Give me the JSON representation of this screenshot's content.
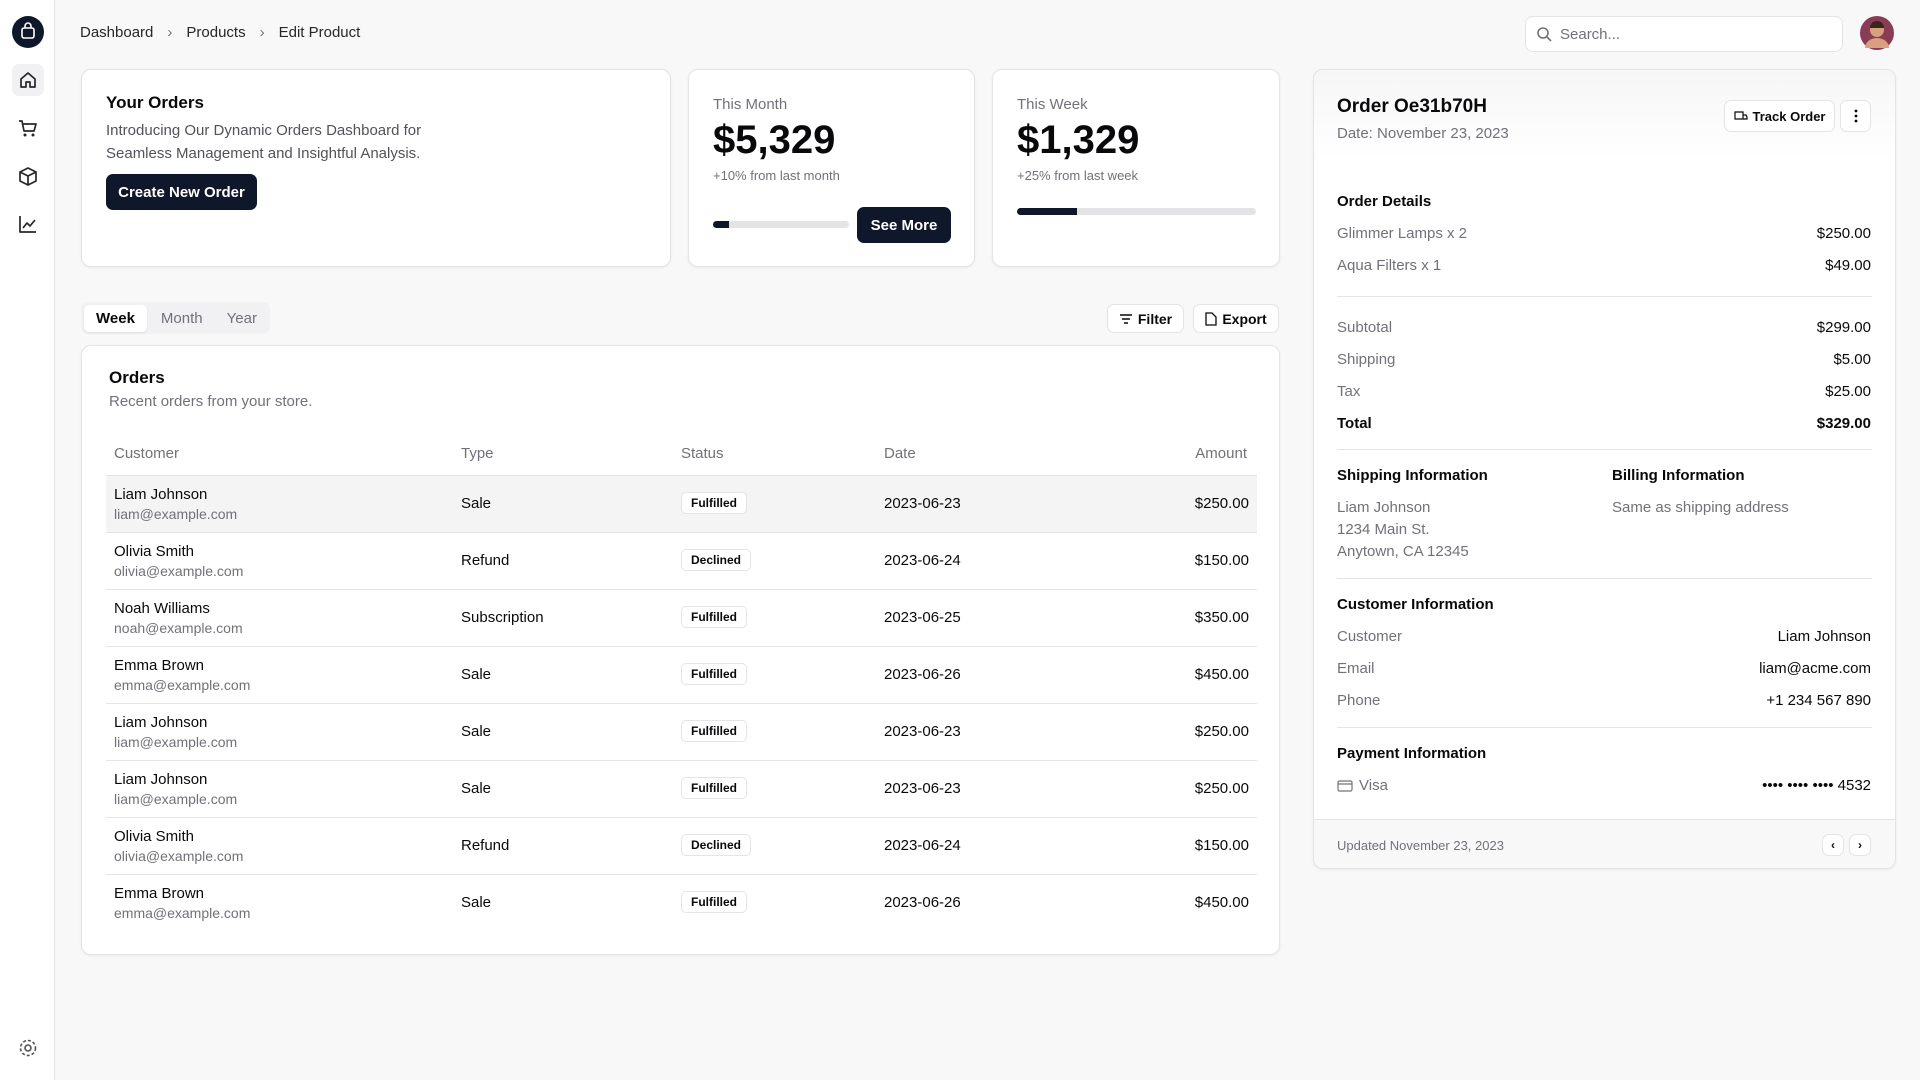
{
  "breadcrumb": [
    "Dashboard",
    "Products",
    "Edit Product"
  ],
  "search_placeholder": "Search...",
  "your_orders": {
    "title": "Your Orders",
    "description_lines": [
      "Introducing Our Dynamic Orders Dashboard for",
      "Seamless Management and Insightful Analysis."
    ],
    "button": "Create New Order"
  },
  "this_month": {
    "label": "This Month",
    "value": "$5,329",
    "change": "+10% from last month",
    "button": "See More",
    "progress": 12
  },
  "this_week": {
    "label": "This Week",
    "value": "$1,329",
    "change": "+25% from last week",
    "progress": 25
  },
  "tabs": [
    "Week",
    "Month",
    "Year"
  ],
  "filter": "Filter",
  "export": "Export",
  "orders": {
    "title": "Orders",
    "description": "Recent orders from your store.",
    "columns": [
      "Customer",
      "Type",
      "Status",
      "Date",
      "Amount"
    ],
    "rows": [
      {
        "name": "Liam Johnson",
        "email": "liam@example.com",
        "type": "Sale",
        "status": "Fulfilled",
        "date": "2023-06-23",
        "amount": "$250.00"
      },
      {
        "name": "Olivia Smith",
        "email": "olivia@example.com",
        "type": "Refund",
        "status": "Declined",
        "date": "2023-06-24",
        "amount": "$150.00"
      },
      {
        "name": "Noah Williams",
        "email": "noah@example.com",
        "type": "Subscription",
        "status": "Fulfilled",
        "date": "2023-06-25",
        "amount": "$350.00"
      },
      {
        "name": "Emma Brown",
        "email": "emma@example.com",
        "type": "Sale",
        "status": "Fulfilled",
        "date": "2023-06-26",
        "amount": "$450.00"
      },
      {
        "name": "Liam Johnson",
        "email": "liam@example.com",
        "type": "Sale",
        "status": "Fulfilled",
        "date": "2023-06-23",
        "amount": "$250.00"
      },
      {
        "name": "Liam Johnson",
        "email": "liam@example.com",
        "type": "Sale",
        "status": "Fulfilled",
        "date": "2023-06-23",
        "amount": "$250.00"
      },
      {
        "name": "Olivia Smith",
        "email": "olivia@example.com",
        "type": "Refund",
        "status": "Declined",
        "date": "2023-06-24",
        "amount": "$150.00"
      },
      {
        "name": "Emma Brown",
        "email": "emma@example.com",
        "type": "Sale",
        "status": "Fulfilled",
        "date": "2023-06-26",
        "amount": "$450.00"
      }
    ]
  },
  "order_panel": {
    "title": "Order Oe31b70H",
    "date": "Date: November 23, 2023",
    "track_button": "Track Order",
    "details_heading": "Order Details",
    "items": [
      {
        "label": "Glimmer Lamps x 2",
        "value": "$250.00"
      },
      {
        "label": "Aqua Filters x 1",
        "value": "$49.00"
      }
    ],
    "totals": [
      {
        "label": "Subtotal",
        "value": "$299.00"
      },
      {
        "label": "Shipping",
        "value": "$5.00"
      },
      {
        "label": "Tax",
        "value": "$25.00"
      },
      {
        "label": "Total",
        "value": "$329.00"
      }
    ],
    "shipping_heading": "Shipping Information",
    "shipping_lines": [
      "Liam Johnson",
      "1234 Main St.",
      "Anytown, CA 12345"
    ],
    "billing_heading": "Billing Information",
    "billing_text": "Same as shipping address",
    "customer_heading": "Customer Information",
    "customer": [
      {
        "label": "Customer",
        "value": "Liam Johnson"
      },
      {
        "label": "Email",
        "value": "liam@acme.com"
      },
      {
        "label": "Phone",
        "value": "+1 234 567 890"
      }
    ],
    "payment_heading": "Payment Information",
    "payment_method": "Visa",
    "card_number": "•••• •••• •••• 4532",
    "footer": "Updated November 23, 2023"
  }
}
